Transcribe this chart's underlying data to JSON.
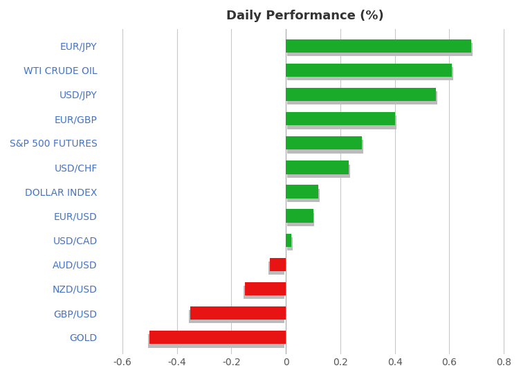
{
  "title": "Daily Performance (%)",
  "categories": [
    "EUR/JPY",
    "WTI CRUDE OIL",
    "USD/JPY",
    "EUR/GBP",
    "S&P 500 FUTURES",
    "USD/CHF",
    "DOLLAR INDEX",
    "EUR/USD",
    "USD/CAD",
    "AUD/USD",
    "NZD/USD",
    "GBP/USD",
    "GOLD"
  ],
  "values": [
    0.68,
    0.61,
    0.55,
    0.4,
    0.28,
    0.23,
    0.12,
    0.1,
    0.02,
    -0.06,
    -0.15,
    -0.35,
    -0.5
  ],
  "positive_color": "#1aab2a",
  "negative_color": "#e81313",
  "shadow_color": "#bbbbbb",
  "background_color": "#ffffff",
  "grid_color": "#c8c8c8",
  "label_color": "#4472c4",
  "title_fontsize": 13,
  "tick_fontsize": 10,
  "label_fontsize": 10,
  "xlim": [
    -0.68,
    0.82
  ],
  "xticks": [
    -0.6,
    -0.4,
    -0.2,
    0.0,
    0.2,
    0.4,
    0.6,
    0.8
  ],
  "xticklabels": [
    "-0.6",
    "-0.4",
    "-0.2",
    "0",
    "0.2",
    "0.4",
    "0.6",
    "0.8"
  ],
  "bar_height": 0.55
}
